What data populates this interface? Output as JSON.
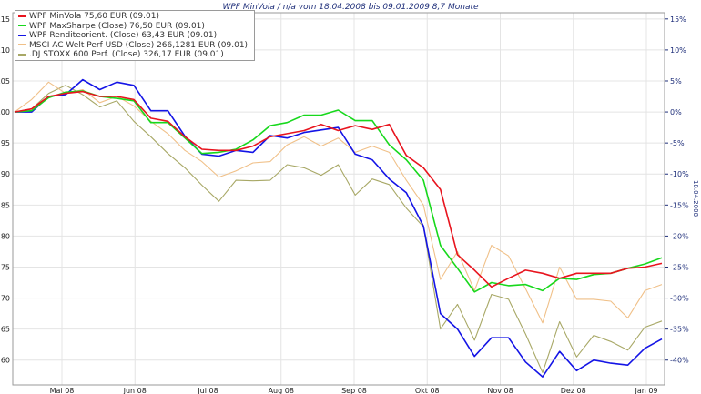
{
  "chart_data": {
    "type": "line",
    "title": "WPF MinVola / n/a vom 18.04.2008 bis 09.01.2009 8,7 Monate",
    "right_axis_label": "18.04.2008",
    "left_ticks": [
      "115",
      "110",
      "105",
      "100",
      "95",
      "90",
      "85",
      "80",
      "75",
      "70",
      "65",
      "60"
    ],
    "left_tick_values": [
      115,
      110,
      105,
      100,
      95,
      90,
      85,
      80,
      75,
      70,
      65,
      60
    ],
    "ylim": [
      56,
      116
    ],
    "right_ticks": [
      "15%",
      "10%",
      "5%",
      "0%",
      "-5%",
      "-10%",
      "-15%",
      "-20%",
      "-25%",
      "-30%",
      "-35%",
      "-40%"
    ],
    "right_tick_values": [
      15,
      10,
      5,
      0,
      -5,
      -10,
      -15,
      -20,
      -25,
      -30,
      -35,
      -40
    ],
    "x_ticks": [
      "Mai 08",
      "Jun 08",
      "Jul 08",
      "Aug 08",
      "Sep 08",
      "Okt 08",
      "Nov 08",
      "Dez 08",
      "Jan 09"
    ],
    "grid": true,
    "legend_position": "top-left",
    "x": [
      "18.04.08",
      "25.04.08",
      "02.05.08",
      "09.05.08",
      "16.05.08",
      "23.05.08",
      "30.05.08",
      "06.06.08",
      "13.06.08",
      "20.06.08",
      "27.06.08",
      "04.07.08",
      "11.07.08",
      "18.07.08",
      "25.07.08",
      "01.08.08",
      "08.08.08",
      "15.08.08",
      "22.08.08",
      "29.08.08",
      "05.09.08",
      "12.09.08",
      "19.09.08",
      "26.09.08",
      "03.10.08",
      "10.10.08",
      "17.10.08",
      "24.10.08",
      "31.10.08",
      "07.11.08",
      "14.11.08",
      "21.11.08",
      "28.11.08",
      "05.12.08",
      "12.12.08",
      "19.12.08",
      "26.12.08",
      "02.01.09",
      "09.01.09"
    ],
    "series": [
      {
        "name": "WPF MinVola 75,60 EUR (09.01)",
        "color": "#e8141e",
        "values": [
          100,
          100.5,
          102.5,
          103,
          103.3,
          102.5,
          102.5,
          102,
          99,
          98.5,
          96,
          94,
          93.8,
          93.8,
          94.5,
          96,
          96.5,
          97,
          98,
          97,
          97.8,
          97.2,
          98,
          93,
          91,
          87.5,
          77,
          74.5,
          71.8,
          73.2,
          74.5,
          74,
          73.2,
          74,
          74,
          74,
          74.8,
          75,
          75.6
        ]
      },
      {
        "name": "WPF MaxSharpe (Close) 76,50 EUR (09.01)",
        "color": "#17d81c",
        "values": [
          100,
          100.2,
          102.3,
          103.2,
          103.4,
          102.5,
          102.2,
          101.8,
          98.3,
          98.3,
          95.8,
          93.3,
          93.5,
          94,
          95.5,
          97.8,
          98.3,
          99.5,
          99.5,
          100.3,
          98.6,
          98.6,
          94.7,
          92.3,
          89,
          78.5,
          74.8,
          71,
          72.5,
          72,
          72.2,
          71.2,
          73.2,
          73,
          73.8,
          74,
          74.8,
          75.5,
          76.5
        ]
      },
      {
        "name": "WPF Renditeorient. (Close) 63,43 EUR (09.01)",
        "color": "#1414e6",
        "values": [
          100,
          100,
          102.5,
          102.8,
          105.2,
          103.6,
          104.8,
          104.3,
          100.2,
          100.2,
          96.1,
          93.2,
          92.9,
          93.8,
          93.5,
          96.2,
          95.8,
          96.7,
          97.1,
          97.5,
          93.2,
          92.3,
          89.2,
          87,
          81.6,
          67.5,
          65,
          60.6,
          63.6,
          63.6,
          59.7,
          57.3,
          61.4,
          58.3,
          60,
          59.5,
          59.2,
          61.9,
          63.4
        ]
      },
      {
        "name": "MSCI AC Welt Perf USD (Close) 266,1281 EUR (09.01)",
        "color": "#f0c088",
        "values": [
          100,
          102,
          104.8,
          103,
          103.6,
          101.5,
          102.5,
          101,
          98.5,
          96.5,
          93.8,
          92,
          89.5,
          90.5,
          91.8,
          92,
          94.7,
          96,
          94.5,
          95.8,
          93.5,
          94.5,
          93.5,
          89,
          85,
          73,
          77.5,
          71.2,
          78.5,
          76.8,
          71.5,
          66,
          75,
          69.8,
          69.8,
          69.5,
          66.8,
          71.2,
          72.2
        ]
      },
      {
        "name": ".DJ STOXX 600 Perf. (Close) 326,17 EUR (09.01)",
        "color": "#a8a866",
        "values": [
          100,
          100.5,
          103,
          104.3,
          102.8,
          100.8,
          101.8,
          98.5,
          96,
          93.3,
          91,
          88.2,
          85.6,
          89,
          88.9,
          89,
          91.5,
          91,
          89.8,
          91.5,
          86.6,
          89.2,
          88.3,
          84.5,
          81.5,
          65,
          69,
          63.2,
          70.6,
          69.8,
          64.2,
          58,
          66.2,
          60.5,
          64,
          63,
          61.6,
          65.3,
          66.3
        ]
      }
    ]
  }
}
